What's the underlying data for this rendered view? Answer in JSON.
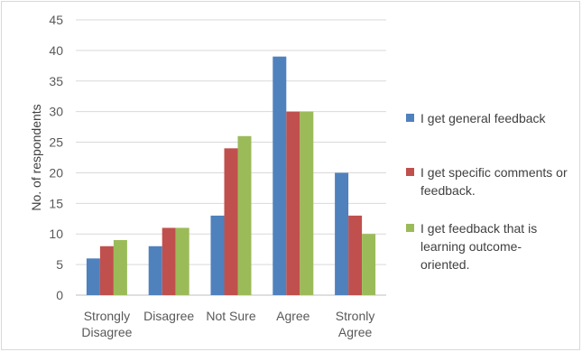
{
  "chart_data": {
    "type": "bar",
    "title": "",
    "xlabel": "",
    "ylabel": "No. of respondents",
    "ylim": [
      0,
      45
    ],
    "yticks": [
      0,
      5,
      10,
      15,
      20,
      25,
      30,
      35,
      40,
      45
    ],
    "categories": [
      [
        "Strongly",
        "Disagree"
      ],
      [
        "Disagree"
      ],
      [
        "Not Sure"
      ],
      [
        "Agree"
      ],
      [
        "Stronly",
        "Agree"
      ]
    ],
    "series": [
      {
        "name": [
          "I get general feedback"
        ],
        "values": [
          6,
          8,
          13,
          39,
          20
        ],
        "color": "#4f81bd"
      },
      {
        "name": [
          "I get specific comments or",
          "feedback."
        ],
        "values": [
          8,
          11,
          24,
          30,
          13
        ],
        "color": "#c0504d"
      },
      {
        "name": [
          "I get feedback that is",
          "learning outcome-",
          "oriented."
        ],
        "values": [
          9,
          11,
          26,
          30,
          10
        ],
        "color": "#9bbb59"
      }
    ],
    "grid": true,
    "legend_position": "right"
  }
}
